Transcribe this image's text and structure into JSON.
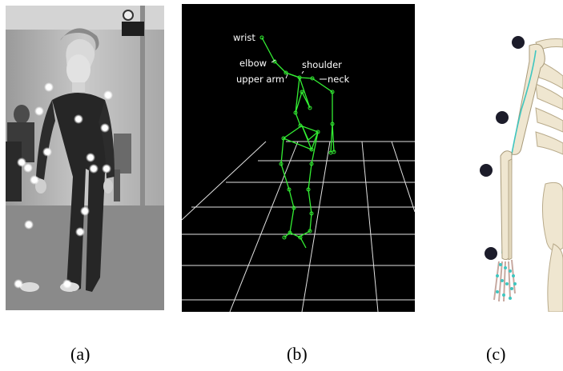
{
  "captions": {
    "a": "(a)",
    "b": "(b)",
    "c": "(c)"
  },
  "skeleton_labels": {
    "wrist": "wrist",
    "elbow": "elbow",
    "upper_arm": "upper arm",
    "shoulder": "shoulder",
    "neck": "neck"
  },
  "colors": {
    "skeleton": "#33ee33",
    "grid": "#e8e8e8",
    "marker_light": "#ffffff",
    "marker_dark": "#1c1c2a",
    "bone": "#efe6d0",
    "muscle": "#3fc6c0"
  }
}
